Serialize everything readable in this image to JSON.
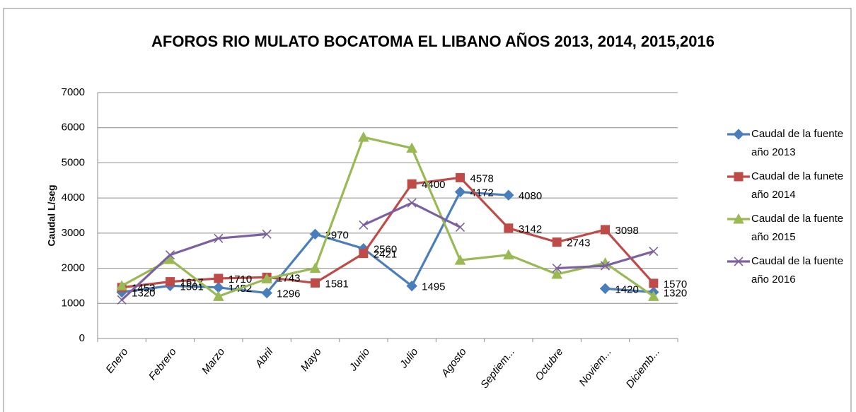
{
  "chart_data": {
    "type": "line",
    "title": "AFOROS RIO MULATO BOCATOMA EL LIBANO AÑOS 2013, 2014, 2015,2016",
    "y_label": "Caudal L/seg",
    "categories": [
      "Enero",
      "Febrero",
      "Marzo",
      "Abril",
      "Mayo",
      "Junio",
      "Julio",
      "Agosto",
      "Septiem...",
      "Octubre",
      "Noviem...",
      "Diciemb..."
    ],
    "series": [
      {
        "name": "Caudal de la fuente año 2013",
        "color": "#4a7ebb",
        "marker": "diamond",
        "show_labels": true,
        "values": [
          1320,
          1501,
          1452,
          1296,
          2970,
          2560,
          1495,
          4172,
          4080,
          null,
          1420,
          1320
        ]
      },
      {
        "name": "Caudal de la funete año 2014",
        "color": "#be4b48",
        "marker": "square",
        "show_labels": true,
        "values": [
          1453,
          1617,
          1710,
          1743,
          1581,
          2421,
          4400,
          4578,
          3142,
          2743,
          3098,
          1570
        ]
      },
      {
        "name": "Caudal de la fuente año 2015",
        "color": "#98b954",
        "marker": "triangle",
        "show_labels": false,
        "values": [
          1500,
          2250,
          1200,
          1700,
          2000,
          5730,
          5420,
          2230,
          2380,
          1830,
          2150,
          1200
        ]
      },
      {
        "name": "Caudal de la fuente año 2016",
        "color": "#7d60a0",
        "marker": "x",
        "show_labels": false,
        "values": [
          1100,
          2380,
          2850,
          2970,
          null,
          3230,
          3860,
          3170,
          null,
          2000,
          2070,
          2480
        ]
      }
    ],
    "ylim": [
      0,
      7000
    ],
    "yticks": [
      0,
      1000,
      2000,
      3000,
      4000,
      5000,
      6000,
      7000
    ],
    "grid": true,
    "legend": "right"
  }
}
